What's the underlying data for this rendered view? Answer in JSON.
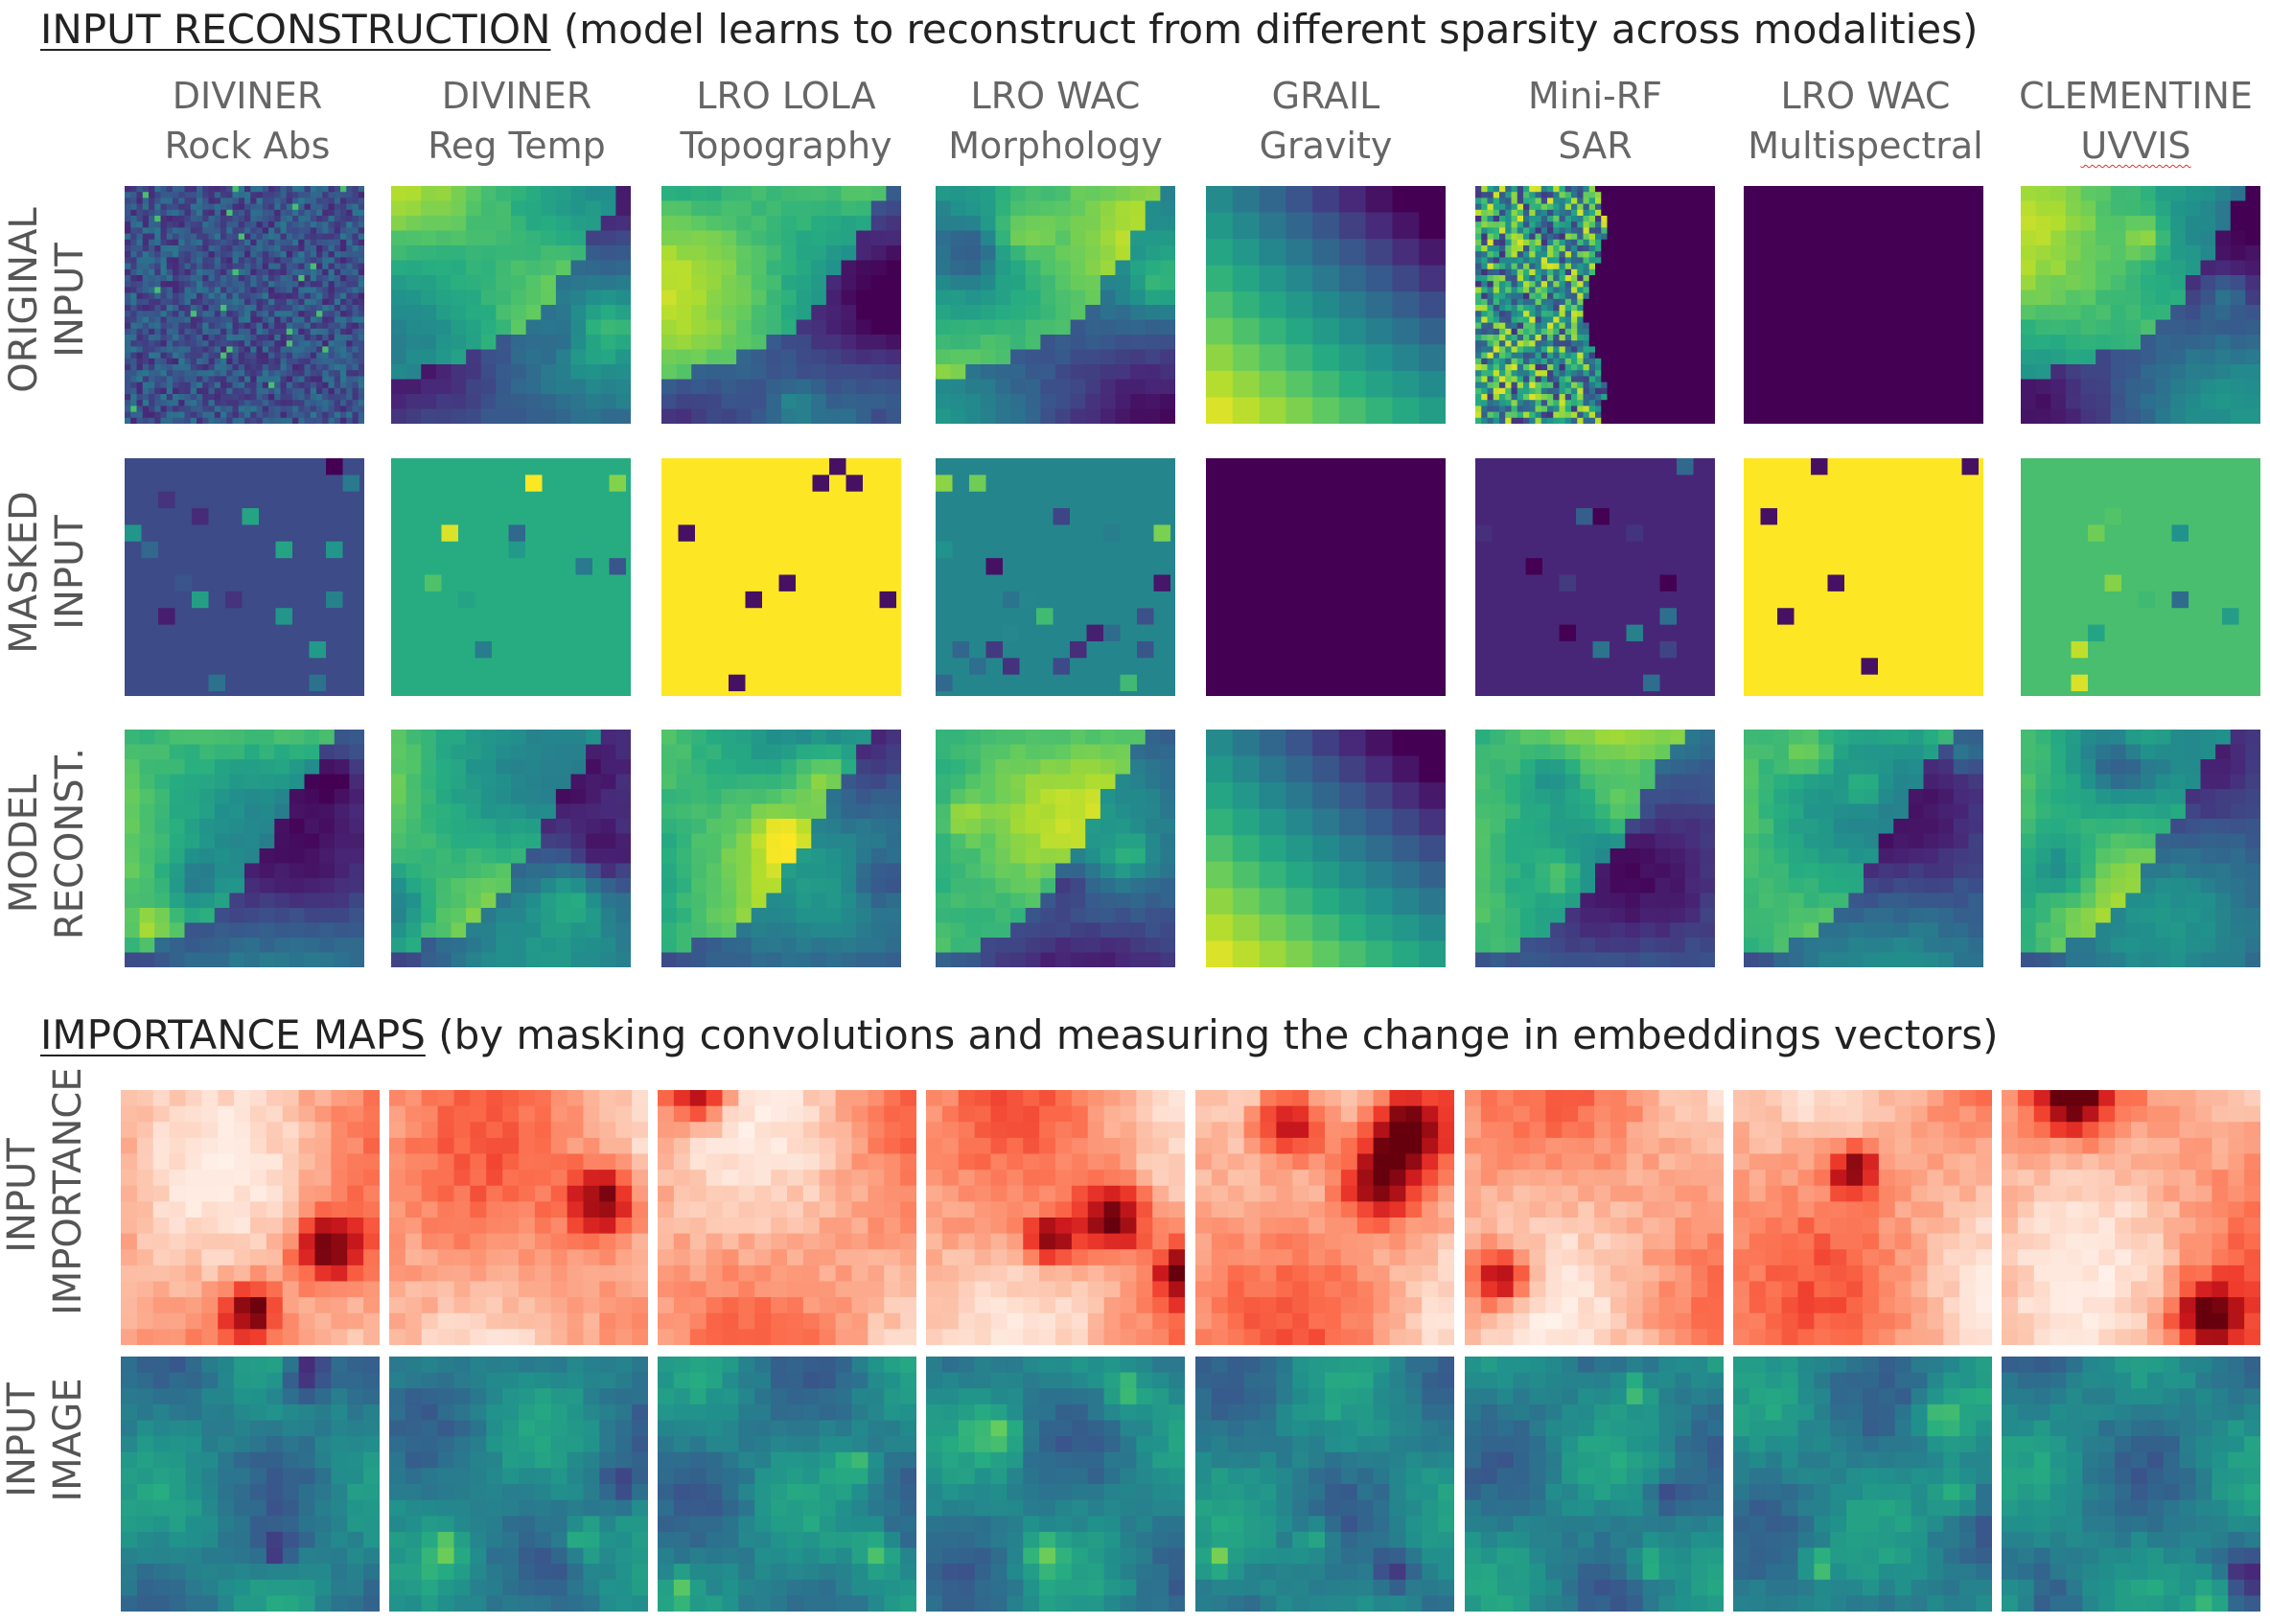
{
  "section1": {
    "title": "INPUT RECONSTRUCTION",
    "subtitle": " (model learns to reconstruct from different sparsity across modalities)"
  },
  "columns": [
    {
      "line1": "DIVINER",
      "line2": "Rock Abs"
    },
    {
      "line1": "DIVINER",
      "line2": "Reg Temp"
    },
    {
      "line1": "LRO LOLA",
      "line2": "Topography"
    },
    {
      "line1": "LRO WAC",
      "line2": "Morphology"
    },
    {
      "line1": "GRAIL",
      "line2": "Gravity"
    },
    {
      "line1": "Mini-RF",
      "line2": "SAR"
    },
    {
      "line1": "LRO WAC",
      "line2": "Multispectral"
    },
    {
      "line1": "CLEMENTINE",
      "line2": "UVVIS"
    }
  ],
  "rows_top": [
    {
      "line1": "ORIGINAL",
      "line2": "INPUT"
    },
    {
      "line1": "MASKED",
      "line2": "INPUT"
    },
    {
      "line1": "MODEL",
      "line2": "RECONST."
    }
  ],
  "section2": {
    "title": "IMPORTANCE MAPS",
    "subtitle": " (by masking convolutions and measuring the change in embeddings vectors)"
  },
  "rows_bottom": [
    {
      "line1": "INPUT",
      "line2": "IMPORTANCE"
    },
    {
      "line1": "INPUT",
      "line2": "IMAGE"
    }
  ],
  "colors": {
    "viridis_dark": "#440154",
    "viridis_blue": "#3b528b",
    "viridis_teal": "#21918c",
    "viridis_green": "#5ec962",
    "viridis_yellow": "#fde725",
    "reds_light": "#fff5f0",
    "reds_dark": "#67000d"
  }
}
